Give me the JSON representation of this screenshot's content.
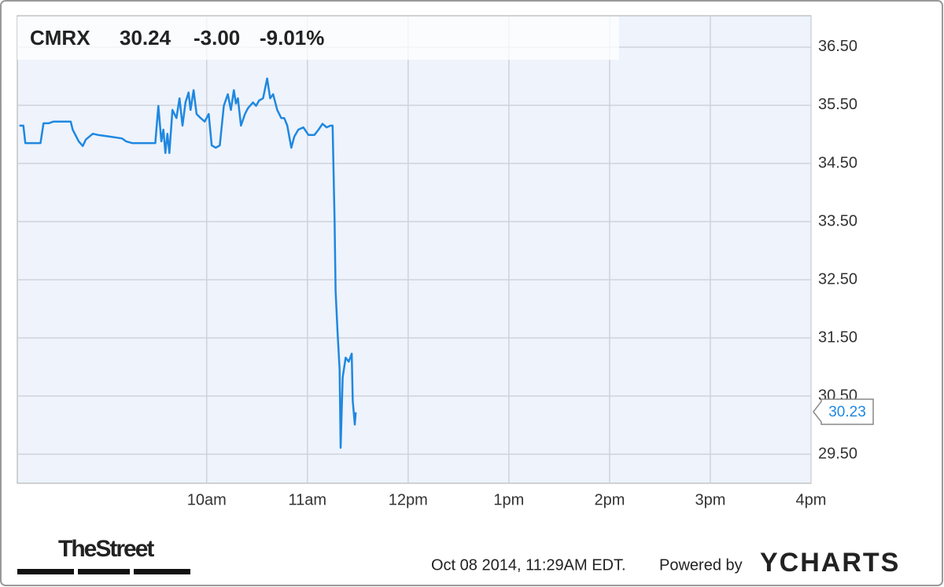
{
  "chart_data": {
    "type": "line",
    "ticker": "CMRX",
    "price": "30.24",
    "change": "-3.00",
    "change_pct": "-9.01%",
    "color": "#1f88e0",
    "change_color": "#e8151b",
    "x": [
      8.14,
      8.18,
      8.2,
      8.35,
      8.38,
      8.43,
      8.48,
      8.65,
      8.67,
      8.73,
      8.77,
      8.8,
      8.87,
      8.92,
      9.04,
      9.16,
      9.2,
      9.26,
      9.49,
      9.52,
      9.55,
      9.57,
      9.59,
      9.61,
      9.63,
      9.66,
      9.7,
      9.73,
      9.76,
      9.79,
      9.82,
      9.84,
      9.87,
      9.9,
      9.94,
      9.98,
      10.02,
      10.05,
      10.09,
      10.13,
      10.17,
      10.21,
      10.24,
      10.27,
      10.29,
      10.31,
      10.34,
      10.38,
      10.41,
      10.46,
      10.49,
      10.52,
      10.56,
      10.6,
      10.63,
      10.66,
      10.7,
      10.74,
      10.77,
      10.8,
      10.84,
      10.87,
      10.91,
      10.96,
      11.01,
      11.07,
      11.11,
      11.15,
      11.19,
      11.23,
      11.25,
      11.27,
      11.28,
      11.3,
      11.32,
      11.33,
      11.35,
      11.38,
      11.41,
      11.44,
      11.45,
      11.47,
      11.48
    ],
    "values": [
      35.15,
      35.15,
      34.85,
      34.85,
      35.19,
      35.19,
      35.22,
      35.22,
      35.08,
      34.88,
      34.8,
      34.91,
      35.01,
      34.99,
      34.96,
      34.93,
      34.88,
      34.85,
      34.85,
      35.49,
      34.88,
      35.08,
      34.68,
      35.01,
      34.68,
      35.42,
      35.28,
      35.62,
      35.15,
      35.55,
      35.72,
      35.42,
      35.76,
      35.35,
      35.28,
      35.22,
      35.35,
      34.81,
      34.77,
      34.81,
      35.49,
      35.69,
      35.42,
      35.76,
      35.53,
      35.62,
      35.15,
      35.35,
      35.45,
      35.55,
      35.49,
      35.58,
      35.62,
      35.96,
      35.62,
      35.69,
      35.42,
      35.28,
      35.28,
      35.15,
      34.77,
      34.96,
      35.08,
      35.12,
      34.99,
      34.99,
      35.08,
      35.18,
      35.12,
      35.15,
      35.15,
      33.53,
      32.31,
      31.57,
      30.96,
      29.61,
      30.82,
      31.16,
      31.09,
      31.23,
      30.42,
      30.01,
      30.22
    ],
    "last_value": 30.23,
    "xlim": [
      8.12,
      16
    ],
    "xticks": [
      {
        "value": 10,
        "label": "10am"
      },
      {
        "value": 11,
        "label": "11am"
      },
      {
        "value": 12,
        "label": "12pm"
      },
      {
        "value": 13,
        "label": "1pm"
      },
      {
        "value": 14,
        "label": "2pm"
      },
      {
        "value": 15,
        "label": "3pm"
      },
      {
        "value": 16,
        "label": "4pm"
      }
    ],
    "ylim": [
      29.0,
      37.04
    ],
    "yticks": [
      {
        "value": 29.5,
        "label": "29.50"
      },
      {
        "value": 30.5,
        "label": "30.50"
      },
      {
        "value": 31.5,
        "label": "31.50"
      },
      {
        "value": 32.5,
        "label": "32.50"
      },
      {
        "value": 33.5,
        "label": "33.50"
      },
      {
        "value": 34.5,
        "label": "34.50"
      },
      {
        "value": 35.5,
        "label": "35.50"
      },
      {
        "value": 36.5,
        "label": "36.50"
      }
    ],
    "grid": true,
    "source_logo": "TheStreet",
    "timestamp": "Oct 08 2014, 11:29AM EDT.",
    "powered_by": "Powered by",
    "brand": "YCHARTS"
  }
}
